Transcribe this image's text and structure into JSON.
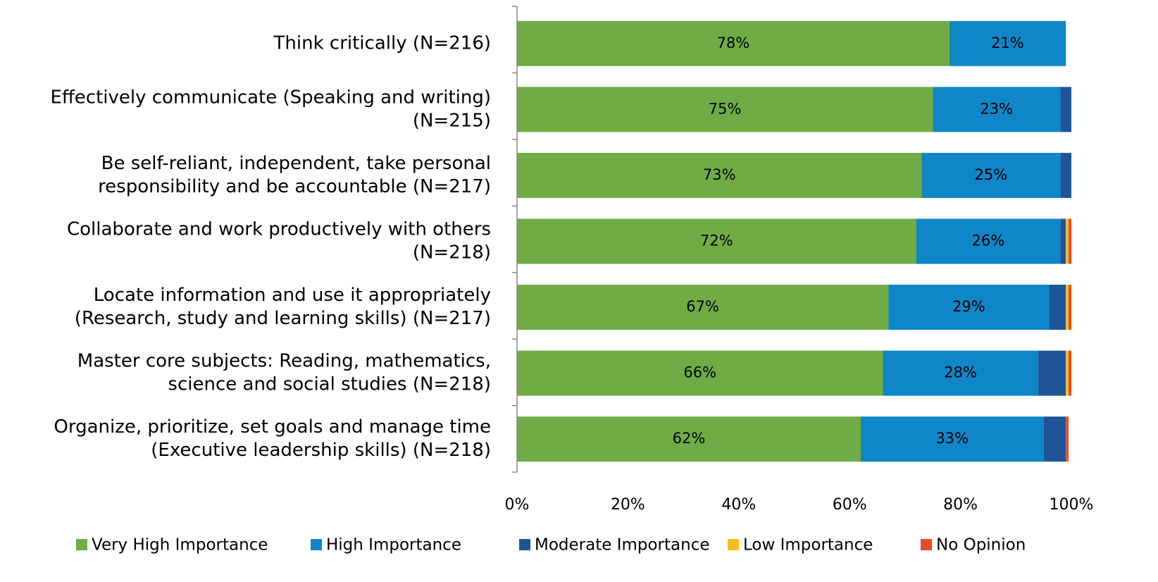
{
  "chart_data": {
    "type": "stacked-barh",
    "categories": [
      [
        "Think critically (N=216)"
      ],
      [
        "Effectively communicate (Speaking and writing)",
        "(N=215)"
      ],
      [
        "Be self-reliant, independent, take personal",
        "responsibility and be accountable (N=217)"
      ],
      [
        "Collaborate and work productively with others",
        "(N=218)"
      ],
      [
        "Locate information and use it appropriately",
        "(Research, study and learning skills) (N=217)"
      ],
      [
        "Master core subjects: Reading, mathematics,",
        "science and social studies (N=218)"
      ],
      [
        "Organize, prioritize, set goals and manage time",
        "(Executive leadership  skills) (N=218)"
      ]
    ],
    "series": [
      {
        "name": "Very High Importance",
        "color": "#6fac46",
        "values": [
          78,
          75,
          73,
          72,
          67,
          66,
          62
        ],
        "value_labels": [
          "78%",
          "75%",
          "73%",
          "72%",
          "67%",
          "66%",
          "62%"
        ]
      },
      {
        "name": "High Importance",
        "color": "#0f86c8",
        "values": [
          21,
          23,
          25,
          26,
          29,
          28,
          33
        ],
        "value_labels": [
          "21%",
          "23%",
          "25%",
          "26%",
          "29%",
          "28%",
          "33%"
        ]
      },
      {
        "name": "Moderate Importance",
        "color": "#1f5596",
        "values": [
          0,
          2,
          2,
          1,
          3,
          5,
          4
        ]
      },
      {
        "name": "Low Importance",
        "color": "#fbbb21",
        "values": [
          0,
          0,
          0,
          0.5,
          0.5,
          0.5,
          0
        ]
      },
      {
        "name": "No Opinion",
        "color": "#e84c2c",
        "values": [
          0,
          0,
          0,
          0.5,
          0.5,
          0.5,
          0.5
        ]
      }
    ],
    "xlim": [
      0,
      100
    ],
    "xticks": [
      {
        "value": 0,
        "label": "0%"
      },
      {
        "value": 20,
        "label": "20%"
      },
      {
        "value": 40,
        "label": "40%"
      },
      {
        "value": 60,
        "label": "60%"
      },
      {
        "value": 80,
        "label": "80%"
      },
      {
        "value": 100,
        "label": "100%"
      }
    ],
    "legend": "bottom"
  }
}
